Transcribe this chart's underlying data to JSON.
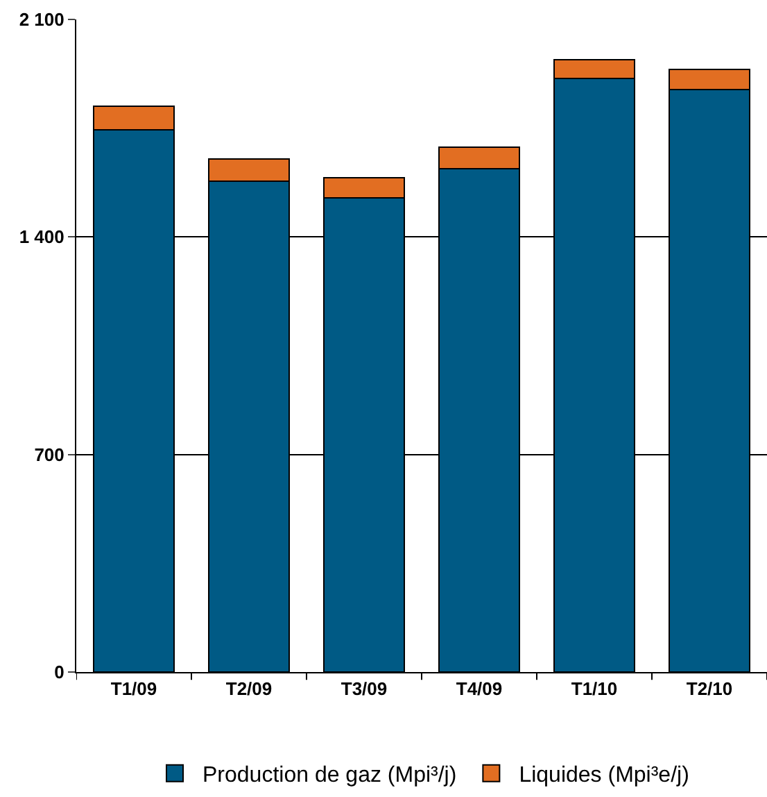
{
  "chart_data": {
    "type": "bar",
    "stacked": true,
    "categories": [
      "T1/09",
      "T2/09",
      "T3/09",
      "T4/09",
      "T1/10",
      "T2/10"
    ],
    "series": [
      {
        "name": "Production de gaz (Mpi³/j)",
        "color": "#005a85",
        "values": [
          1745,
          1580,
          1525,
          1620,
          1910,
          1875
        ]
      },
      {
        "name": "Liquides (Mpi³e/j)",
        "color": "#e26e22",
        "values": [
          75,
          70,
          65,
          70,
          60,
          65
        ]
      }
    ],
    "ylim": [
      0,
      2100
    ],
    "yticks": [
      0,
      {
        "value": 700,
        "label": "700"
      },
      {
        "value": 1400,
        "label": "1 400"
      },
      {
        "value": 2100,
        "label": "2 100"
      }
    ],
    "grid": "y",
    "legend": "bottom"
  }
}
